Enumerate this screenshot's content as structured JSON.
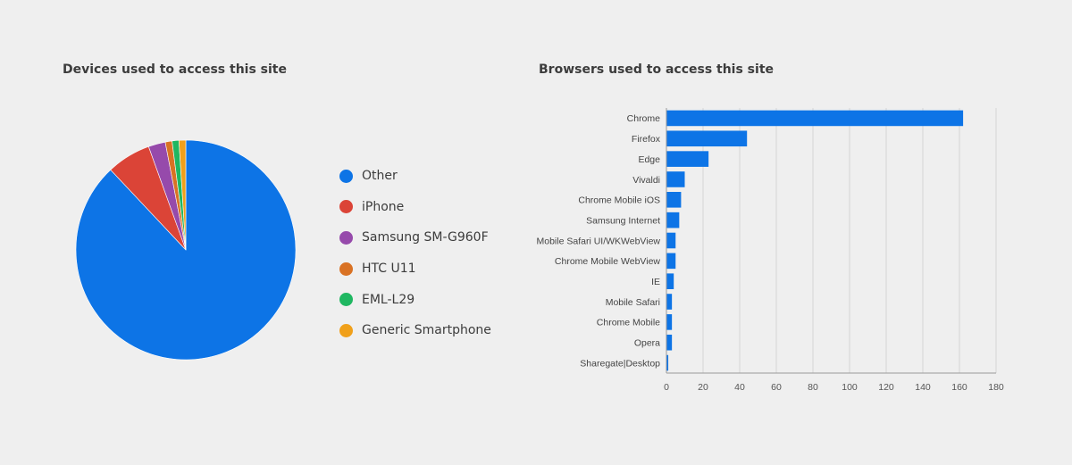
{
  "colors": {
    "background": "#efefef",
    "gridline": "#d6d6d6",
    "axis": "#9a9a9a",
    "bar": "#0d74e6"
  },
  "chart_data": [
    {
      "type": "pie",
      "title": "Devices used to access this site",
      "legend_position": "right",
      "slices": [
        {
          "label": "Other",
          "value": 88.0,
          "color": "#0d74e6"
        },
        {
          "label": "iPhone",
          "value": 6.5,
          "color": "#db4437"
        },
        {
          "label": "Samsung SM-G960F",
          "value": 2.5,
          "color": "#964aab"
        },
        {
          "label": "HTC U11",
          "value": 1.0,
          "color": "#d97224"
        },
        {
          "label": "EML-L29",
          "value": 1.0,
          "color": "#1fb761"
        },
        {
          "label": "Generic Smartphone",
          "value": 1.0,
          "color": "#f0a01a"
        }
      ]
    },
    {
      "type": "bar",
      "orientation": "horizontal",
      "title": "Browsers used to access this site",
      "categories": [
        "Chrome",
        "Firefox",
        "Edge",
        "Vivaldi",
        "Chrome Mobile iOS",
        "Samsung Internet",
        "Mobile Safari UI/WKWebView",
        "Chrome Mobile WebView",
        "IE",
        "Mobile Safari",
        "Chrome Mobile",
        "Opera",
        "Sharegate|Desktop"
      ],
      "values": [
        162,
        44,
        23,
        10,
        8,
        7,
        5,
        5,
        4,
        3,
        3,
        3,
        1
      ],
      "xlim": [
        0,
        180
      ],
      "xticks": [
        0,
        20,
        40,
        60,
        80,
        100,
        120,
        140,
        160,
        180
      ],
      "xlabel": "",
      "ylabel": "",
      "grid": true
    }
  ]
}
